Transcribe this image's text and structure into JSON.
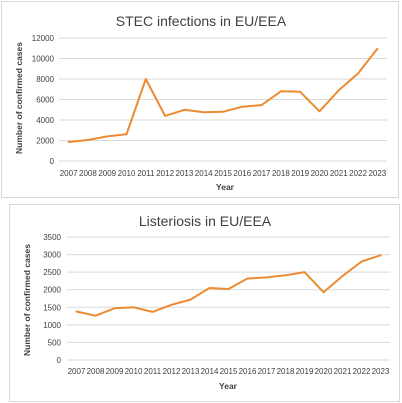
{
  "chart_data": [
    {
      "type": "line",
      "title": "STEC infections in EU/EEA",
      "xlabel": "Year",
      "ylabel": "Number of confirmed cases",
      "categories": [
        "2007",
        "2008",
        "2009",
        "2010",
        "2011",
        "2012",
        "2013",
        "2014",
        "2015",
        "2016",
        "2017",
        "2018",
        "2019",
        "2020",
        "2021",
        "2022",
        "2023"
      ],
      "series": [
        {
          "values": [
            1850,
            2050,
            2400,
            2600,
            8000,
            4400,
            5000,
            4750,
            4800,
            5300,
            5450,
            6800,
            6750,
            4850,
            6900,
            8550,
            10950
          ]
        }
      ],
      "ylim": [
        0,
        12000
      ],
      "yticks": [
        "0",
        "2000",
        "4000",
        "6000",
        "8000",
        "10000",
        "12000"
      ],
      "grid": "horizontal",
      "color": "#ED8B32"
    },
    {
      "type": "line",
      "title": "Listeriosis in EU/EEA",
      "xlabel": "Year",
      "ylabel": "Number of confirmed cases",
      "categories": [
        "2007",
        "2008",
        "2009",
        "2010",
        "2011",
        "2012",
        "2013",
        "2014",
        "2015",
        "2016",
        "2017",
        "2018",
        "2019",
        "2020",
        "2021",
        "2022",
        "2023"
      ],
      "series": [
        {
          "values": [
            1380,
            1260,
            1470,
            1500,
            1370,
            1570,
            1720,
            2050,
            2020,
            2320,
            2350,
            2410,
            2500,
            1930,
            2390,
            2800,
            2980
          ]
        }
      ],
      "ylim": [
        0,
        3500
      ],
      "yticks": [
        "0",
        "500",
        "1000",
        "1500",
        "2000",
        "2500",
        "3000",
        "3500"
      ],
      "grid": "horizontal",
      "color": "#ED8B32"
    }
  ]
}
